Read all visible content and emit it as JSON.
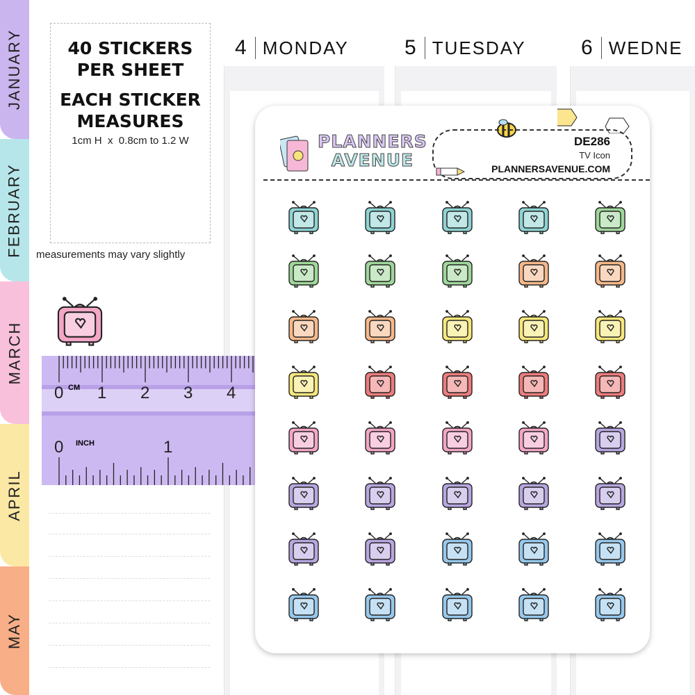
{
  "tabs": [
    {
      "label": "JANUARY",
      "color": "#cbb5ef"
    },
    {
      "label": "FEBRUARY",
      "color": "#b6e6e9"
    },
    {
      "label": "MARCH",
      "color": "#f8c0da"
    },
    {
      "label": "APRIL",
      "color": "#fbe8a4"
    },
    {
      "label": "MAY",
      "color": "#f8ae87"
    }
  ],
  "info": {
    "line1": "40 STICKERS",
    "line2": "PER SHEET",
    "line3": "EACH STICKER",
    "line4": "MEASURES",
    "size": "1cm H  x  0.8cm to 1.2 W",
    "note": "measurements may vary slightly"
  },
  "days": [
    {
      "num": "4",
      "name": "MONDAY"
    },
    {
      "num": "5",
      "name": "TUESDAY"
    },
    {
      "num": "6",
      "name": "WEDNE"
    }
  ],
  "ruler": {
    "cm_unit": "CM",
    "inch_unit": "INCH",
    "cm_labels": [
      "0",
      "1",
      "2",
      "3",
      "4"
    ],
    "inch_labels": [
      "0",
      "1"
    ],
    "color": "#cdb9f2"
  },
  "sheet": {
    "brand_line1": "PLANNERS",
    "brand_line2": "AVENUE",
    "code": "DE286",
    "name": "TV Icon",
    "url": "PLANNERSAVENUE.COM",
    "watermark": "PLANNERS AVENUE"
  },
  "stickers": {
    "icon": "tv-heart-icon",
    "colors": [
      "teal",
      "teal",
      "teal",
      "teal",
      "green",
      "green",
      "green",
      "green",
      "orange",
      "orange",
      "orange",
      "orange",
      "yellow",
      "yellow",
      "yellow",
      "yellow",
      "red",
      "red",
      "red",
      "red",
      "pink",
      "pink",
      "pink",
      "pink",
      "purple",
      "purple",
      "purple",
      "purple",
      "purple",
      "purple",
      "purple",
      "purple",
      "blue",
      "blue",
      "blue",
      "blue",
      "blue",
      "blue",
      "blue",
      "blue"
    ],
    "palette": {
      "teal": "#8fd3d3",
      "green": "#9fd79a",
      "orange": "#f6b88a",
      "yellow": "#f7e77a",
      "red": "#ee7c7c",
      "pink": "#f3a6c6",
      "purple": "#b8a6e0",
      "blue": "#97c8ec"
    },
    "example_color": "#f3a6c6"
  }
}
